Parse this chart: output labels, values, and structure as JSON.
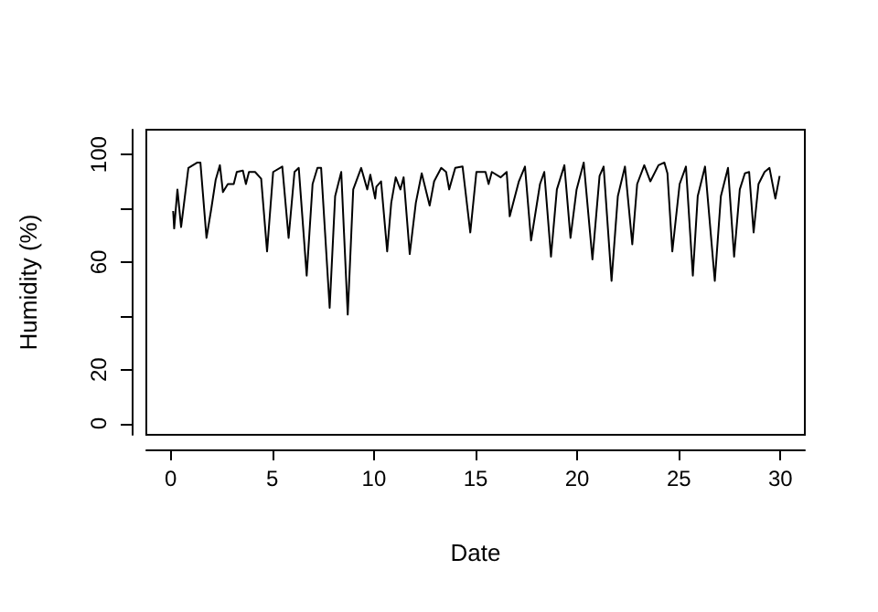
{
  "chart_data": {
    "type": "line",
    "xlabel": "Date",
    "ylabel": "Humidity (%)",
    "x": [
      0.12,
      0.17,
      0.33,
      0.51,
      0.87,
      1.31,
      1.46,
      1.76,
      2.0,
      2.21,
      2.42,
      2.57,
      2.81,
      3.1,
      3.25,
      3.55,
      3.7,
      3.85,
      4.15,
      4.45,
      4.74,
      5.04,
      5.49,
      5.8,
      6.09,
      6.3,
      6.69,
      6.98,
      7.22,
      7.4,
      7.82,
      8.09,
      8.39,
      8.71,
      8.98,
      9.37,
      9.67,
      9.82,
      10.06,
      10.12,
      10.35,
      10.65,
      10.85,
      11.07,
      11.3,
      11.46,
      11.76,
      12.06,
      12.35,
      12.74,
      12.96,
      13.31,
      13.55,
      13.7,
      14.0,
      14.36,
      14.74,
      15.04,
      15.49,
      15.64,
      15.8,
      16.23,
      16.53,
      16.68,
      17.13,
      17.43,
      17.73,
      18.17,
      18.38,
      18.71,
      19.0,
      19.37,
      19.67,
      19.97,
      20.32,
      20.75,
      21.1,
      21.3,
      21.69,
      22.0,
      22.35,
      22.71,
      22.95,
      23.3,
      23.6,
      24.0,
      24.29,
      24.44,
      24.68,
      25.04,
      25.35,
      25.69,
      25.93,
      26.29,
      26.77,
      27.07,
      27.42,
      27.72,
      28.0,
      28.25,
      28.46,
      28.68,
      28.92,
      29.22,
      29.46,
      29.75,
      29.96
    ],
    "series": [
      {
        "color": "#000000",
        "values": [
          79,
          72.5,
          87,
          73,
          95,
          97,
          97,
          69,
          80,
          90.5,
          96,
          86,
          89,
          89,
          93.5,
          94,
          89,
          93.5,
          93.5,
          91,
          64,
          93.5,
          95.5,
          69,
          93.5,
          95,
          55,
          89,
          95,
          95,
          43,
          84.5,
          93.5,
          40.5,
          87,
          95,
          87,
          92.5,
          83.6,
          88,
          90,
          64,
          82,
          91.5,
          87,
          91.5,
          63,
          82,
          93,
          81,
          90,
          95,
          93.5,
          87,
          95,
          95.5,
          71,
          93.5,
          93.5,
          89,
          93.5,
          91.5,
          93.5,
          77,
          90,
          95.5,
          68,
          89,
          93.5,
          62,
          87,
          96,
          69,
          87,
          97,
          61,
          92,
          95.5,
          53,
          84.5,
          95.5,
          66.6,
          89,
          96,
          90,
          96,
          97,
          93,
          64,
          89,
          95.5,
          55,
          84.5,
          95.5,
          53,
          84.5,
          95,
          62,
          87,
          93,
          93.5,
          71,
          89,
          93.5,
          95,
          83.6,
          92
        ]
      }
    ],
    "xlim": [
      -1.2,
      31.2
    ],
    "xticks": [
      0,
      5,
      10,
      15,
      20,
      25,
      30
    ],
    "ylim": [
      -4.2,
      109.2
    ],
    "yticks": [
      0,
      20,
      {
        "value": 40,
        "label": null
      },
      60,
      {
        "value": 80,
        "label": null
      },
      100
    ],
    "grid": false,
    "marker": "none",
    "line_style": "solid"
  }
}
